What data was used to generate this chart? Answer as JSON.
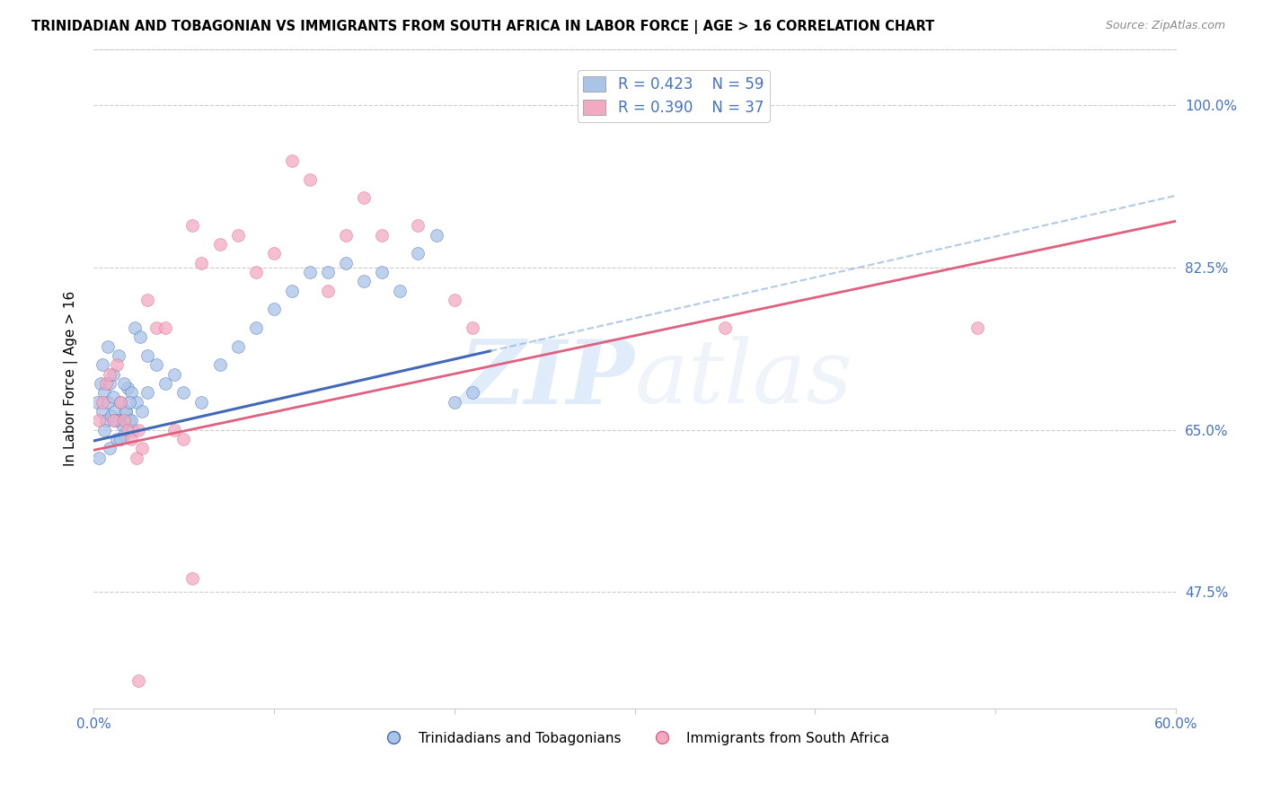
{
  "title": "TRINIDADIAN AND TOBAGONIAN VS IMMIGRANTS FROM SOUTH AFRICA IN LABOR FORCE | AGE > 16 CORRELATION CHART",
  "source": "Source: ZipAtlas.com",
  "ylabel": "In Labor Force | Age > 16",
  "xmin": 0.0,
  "xmax": 0.6,
  "ymin": 0.35,
  "ymax": 1.06,
  "yticks": [
    0.475,
    0.65,
    0.825,
    1.0
  ],
  "ytick_labels": [
    "47.5%",
    "65.0%",
    "82.5%",
    "100.0%"
  ],
  "xticks": [
    0.0,
    0.1,
    0.2,
    0.3,
    0.4,
    0.5,
    0.6
  ],
  "xtick_labels": [
    "0.0%",
    "",
    "",
    "",
    "",
    "",
    "60.0%"
  ],
  "legend_r1": "R = 0.423",
  "legend_n1": "N = 59",
  "legend_r2": "R = 0.390",
  "legend_n2": "N = 37",
  "series1_color": "#aac4e8",
  "series2_color": "#f2aac2",
  "trend1_color": "#4169b8",
  "trend2_color": "#e06080",
  "trend1_dash_color": "#90b4e0",
  "watermark_zip": "ZIP",
  "watermark_atlas": "atlas",
  "axis_color": "#4472c4",
  "blue_trend_x0": 0.0,
  "blue_trend_y0": 0.638,
  "blue_trend_x1": 0.22,
  "blue_trend_y1": 0.735,
  "blue_trend_xend": 0.6,
  "blue_trend_yend": 1.01,
  "pink_trend_x0": 0.0,
  "pink_trend_y0": 0.628,
  "pink_trend_x1": 0.6,
  "pink_trend_y1": 0.875,
  "blue_dots_x": [
    0.002,
    0.004,
    0.005,
    0.006,
    0.007,
    0.008,
    0.009,
    0.01,
    0.011,
    0.012,
    0.013,
    0.014,
    0.015,
    0.016,
    0.017,
    0.018,
    0.019,
    0.02,
    0.021,
    0.022,
    0.003,
    0.006,
    0.009,
    0.012,
    0.015,
    0.018,
    0.021,
    0.024,
    0.027,
    0.03,
    0.005,
    0.008,
    0.011,
    0.014,
    0.017,
    0.02,
    0.023,
    0.026,
    0.03,
    0.035,
    0.04,
    0.045,
    0.05,
    0.06,
    0.07,
    0.08,
    0.09,
    0.1,
    0.11,
    0.12,
    0.13,
    0.14,
    0.15,
    0.16,
    0.17,
    0.18,
    0.19,
    0.2,
    0.21
  ],
  "blue_dots_y": [
    0.68,
    0.7,
    0.67,
    0.69,
    0.66,
    0.68,
    0.7,
    0.665,
    0.685,
    0.67,
    0.64,
    0.66,
    0.68,
    0.655,
    0.645,
    0.67,
    0.695,
    0.66,
    0.69,
    0.65,
    0.62,
    0.65,
    0.63,
    0.66,
    0.64,
    0.67,
    0.66,
    0.68,
    0.67,
    0.69,
    0.72,
    0.74,
    0.71,
    0.73,
    0.7,
    0.68,
    0.76,
    0.75,
    0.73,
    0.72,
    0.7,
    0.71,
    0.69,
    0.68,
    0.72,
    0.74,
    0.76,
    0.78,
    0.8,
    0.82,
    0.82,
    0.83,
    0.81,
    0.82,
    0.8,
    0.84,
    0.86,
    0.68,
    0.69
  ],
  "pink_dots_x": [
    0.003,
    0.005,
    0.007,
    0.009,
    0.011,
    0.013,
    0.015,
    0.017,
    0.019,
    0.021,
    0.024,
    0.027,
    0.03,
    0.035,
    0.04,
    0.05,
    0.06,
    0.07,
    0.08,
    0.09,
    0.1,
    0.11,
    0.12,
    0.13,
    0.14,
    0.15,
    0.16,
    0.18,
    0.2,
    0.21,
    0.025,
    0.045,
    0.055,
    0.35,
    0.49,
    0.055,
    0.025
  ],
  "pink_dots_y": [
    0.66,
    0.68,
    0.7,
    0.71,
    0.66,
    0.72,
    0.68,
    0.66,
    0.65,
    0.64,
    0.62,
    0.63,
    0.79,
    0.76,
    0.76,
    0.64,
    0.83,
    0.85,
    0.86,
    0.82,
    0.84,
    0.94,
    0.92,
    0.8,
    0.86,
    0.9,
    0.86,
    0.87,
    0.79,
    0.76,
    0.65,
    0.65,
    0.49,
    0.76,
    0.76,
    0.87,
    0.38
  ]
}
